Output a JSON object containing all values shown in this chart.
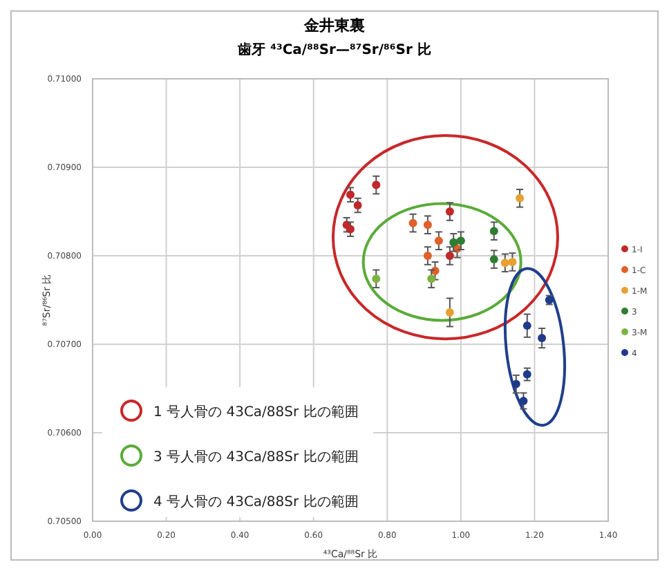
{
  "chart_data": {
    "type": "scatter",
    "title": "金井東裏",
    "subtitle": "歯牙 ⁴³Ca/⁸⁸Sr—⁸⁷Sr/⁸⁶Sr 比",
    "xlabel": "⁴³Ca/⁸⁸Sr 比",
    "ylabel": "⁸⁷Sr/⁸⁶Sr 比",
    "xlim": [
      0,
      1.4
    ],
    "ylim": [
      0.705,
      0.71
    ],
    "xticks": [
      {
        "value": 0,
        "label": "0.00"
      },
      {
        "value": 0.2,
        "label": "0.20"
      },
      {
        "value": 0.4,
        "label": "0.40"
      },
      {
        "value": 0.6,
        "label": "0.60"
      },
      {
        "value": 0.8,
        "label": "0.80"
      },
      {
        "value": 1,
        "label": "1.00"
      },
      {
        "value": 1.2,
        "label": "1.20"
      },
      {
        "value": 1.4,
        "label": "1.40"
      }
    ],
    "yticks": [
      {
        "value": 0.705,
        "label": "0.70500"
      },
      {
        "value": 0.706,
        "label": "0.70600"
      },
      {
        "value": 0.707,
        "label": "0.70700"
      },
      {
        "value": 0.708,
        "label": "0.70800"
      },
      {
        "value": 0.709,
        "label": "0.70900"
      },
      {
        "value": 0.71,
        "label": "0.71000"
      }
    ],
    "grid": true,
    "legend": "right",
    "marker": "circle",
    "annotations": [
      "1 号人骨の 43Ca/88Sr 比の範囲",
      "3 号人骨の 43Ca/88Sr 比の範囲",
      "4 号人骨の 43Ca/88Sr 比の範囲"
    ],
    "series": [
      {
        "name": "1-I",
        "color": "#c0282a",
        "x": [
          0.7,
          0.72,
          0.77,
          0.69,
          0.7,
          0.97,
          0.97
        ],
        "values": [
          0.70869,
          0.70857,
          0.7088,
          0.70835,
          0.7083,
          0.7085,
          0.708
        ],
        "errors": [
          8e-05,
          8e-05,
          0.0001,
          8e-05,
          8e-05,
          0.0001,
          0.0001
        ]
      },
      {
        "name": "1-C",
        "color": "#e0602a",
        "x": [
          0.87,
          0.91,
          0.91,
          0.93,
          0.94,
          0.99
        ],
        "values": [
          0.70837,
          0.70835,
          0.708,
          0.70783,
          0.70817,
          0.70808
        ],
        "errors": [
          0.0001,
          0.0001,
          0.0001,
          0.0001,
          0.0001,
          0.0001
        ]
      },
      {
        "name": "1-M",
        "color": "#e8a030",
        "x": [
          0.97,
          1.12,
          1.14,
          1.16
        ],
        "values": [
          0.70736,
          0.70792,
          0.70793,
          0.70865
        ],
        "errors": [
          0.00016,
          0.0001,
          0.0001,
          0.0001
        ]
      },
      {
        "name": "3",
        "color": "#2e7d32",
        "x": [
          1.0,
          0.98,
          1.09,
          1.09
        ],
        "values": [
          0.70817,
          0.70815,
          0.70828,
          0.70796
        ],
        "errors": [
          0.0001,
          0.0001,
          0.0001,
          0.0001
        ]
      },
      {
        "name": "3-M",
        "color": "#7cb342",
        "x": [
          0.77,
          0.92
        ],
        "values": [
          0.70774,
          0.70774
        ],
        "errors": [
          0.0001,
          0.0001
        ]
      },
      {
        "name": "4",
        "color": "#1f3a8a",
        "x": [
          1.24,
          1.18,
          1.22,
          1.18,
          1.15,
          1.17
        ],
        "values": [
          0.7075,
          0.70721,
          0.70707,
          0.70666,
          0.70655,
          0.70636
        ],
        "errors": [
          5e-05,
          0.00013,
          0.00011,
          7e-05,
          0.0001,
          9e-05
        ]
      }
    ]
  }
}
